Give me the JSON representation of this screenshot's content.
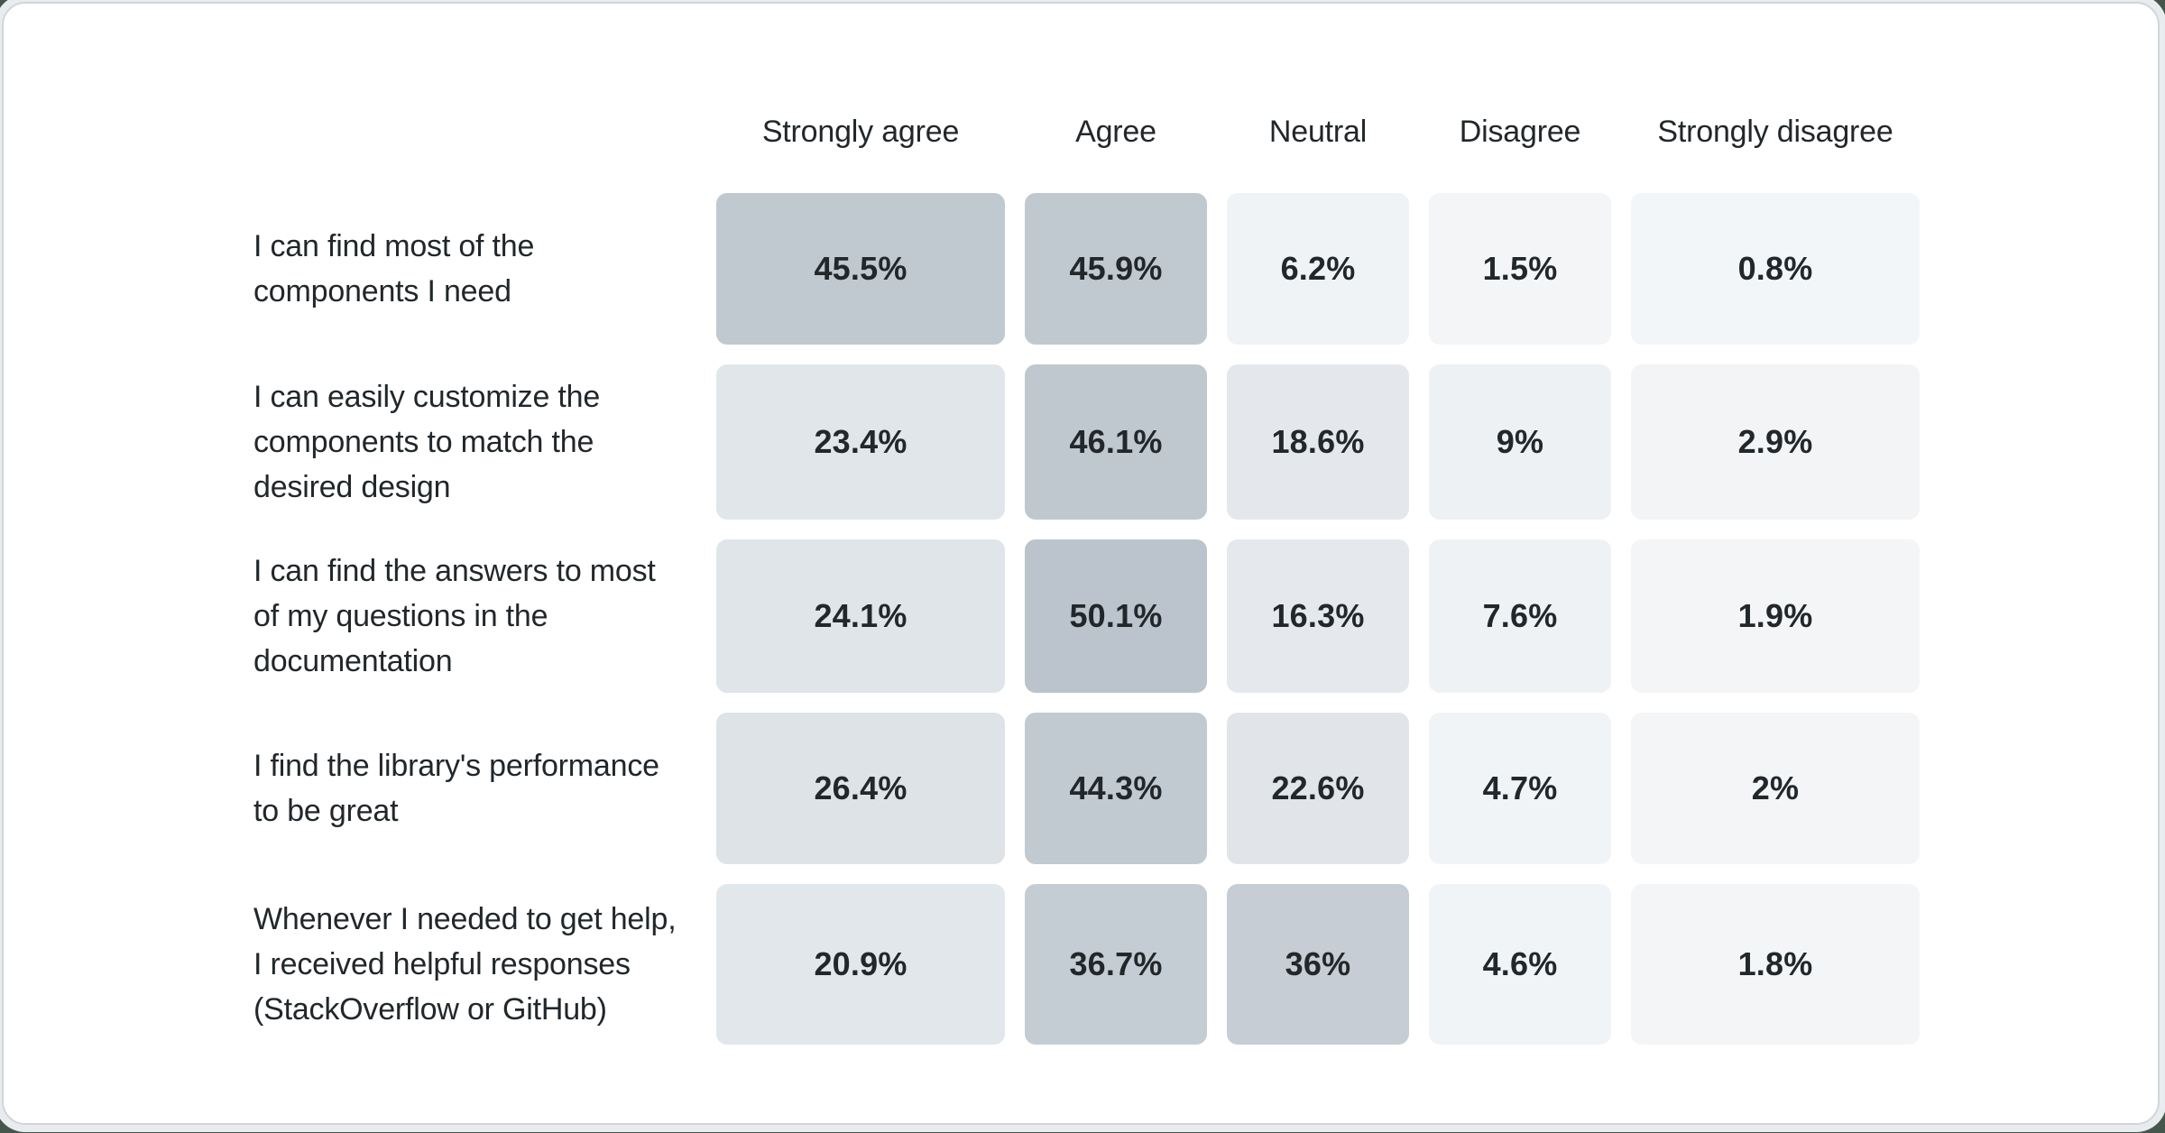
{
  "page": {
    "background_behind_card": "#45574d",
    "card_background": "#ffffff",
    "card_border_color": "#d0d6da",
    "card_halo_color": "#e9ecee",
    "text_color": "#21272a"
  },
  "table": {
    "columns": [
      "Strongly agree",
      "Agree",
      "Neutral",
      "Disagree",
      "Strongly disagree"
    ],
    "rows": [
      {
        "label": "I can find most of the components I need",
        "label_lines": [
          "I can find most of the",
          "components I need"
        ],
        "cells": [
          {
            "value": "45.5%",
            "bg": "#c0c8d0"
          },
          {
            "value": "45.9%",
            "bg": "#c0c8d0"
          },
          {
            "value": "6.2%",
            "bg": "#f0f3f5"
          },
          {
            "value": "1.5%",
            "bg": "#f3f5f7"
          },
          {
            "value": "0.8%",
            "bg": "#f3f6f8"
          }
        ]
      },
      {
        "label": "I can easily customize the components to match the desired design",
        "label_lines": [
          "I can easily customize the",
          "components to match the",
          "desired design"
        ],
        "cells": [
          {
            "value": "23.4%",
            "bg": "#e1e6ea"
          },
          {
            "value": "46.1%",
            "bg": "#bfc7cf"
          },
          {
            "value": "18.6%",
            "bg": "#e4e8ec"
          },
          {
            "value": "9%",
            "bg": "#edf1f4"
          },
          {
            "value": "2.9%",
            "bg": "#f2f4f6"
          }
        ]
      },
      {
        "label": "I can find the answers to most of my questions in the documentation",
        "label_lines": [
          "I can find the answers to most",
          "of my questions in the",
          "documentation"
        ],
        "cells": [
          {
            "value": "24.1%",
            "bg": "#e0e5e9"
          },
          {
            "value": "50.1%",
            "bg": "#bbc4cc"
          },
          {
            "value": "16.3%",
            "bg": "#e5e9ed"
          },
          {
            "value": "7.6%",
            "bg": "#eff2f4"
          },
          {
            "value": "1.9%",
            "bg": "#f3f5f7"
          }
        ]
      },
      {
        "label": "I find the library's performance to be great",
        "label_lines": [
          "I find the library's performance",
          "to be great"
        ],
        "cells": [
          {
            "value": "26.4%",
            "bg": "#dee3e8"
          },
          {
            "value": "44.3%",
            "bg": "#c1c9d1"
          },
          {
            "value": "22.6%",
            "bg": "#e1e5ea"
          },
          {
            "value": "4.7%",
            "bg": "#f1f4f6"
          },
          {
            "value": "2%",
            "bg": "#f3f5f7"
          }
        ]
      },
      {
        "label": "Whenever I needed to get help, I received helpful responses (StackOverflow or GitHub)",
        "label_lines": [
          "Whenever I needed to get help,",
          "I received helpful responses",
          "(StackOverflow or GitHub)"
        ],
        "cells": [
          {
            "value": "20.9%",
            "bg": "#e2e7eb"
          },
          {
            "value": "36.7%",
            "bg": "#c5cdd4"
          },
          {
            "value": "36%",
            "bg": "#c6cdd4"
          },
          {
            "value": "4.6%",
            "bg": "#f1f4f6"
          },
          {
            "value": "1.8%",
            "bg": "#f3f5f7"
          }
        ]
      }
    ]
  },
  "chart_data": {
    "type": "heatmap",
    "title": "",
    "columns": [
      "Strongly agree",
      "Agree",
      "Neutral",
      "Disagree",
      "Strongly disagree"
    ],
    "rows": [
      "I can find most of the components I need",
      "I can easily customize the components to match the desired design",
      "I can find the answers to most of my questions in the documentation",
      "I find the library's performance to be great",
      "Whenever I needed to get help, I received helpful responses (StackOverflow or GitHub)"
    ],
    "values_percent": [
      [
        45.5,
        45.9,
        6.2,
        1.5,
        0.8
      ],
      [
        23.4,
        46.1,
        18.6,
        9,
        2.9
      ],
      [
        24.1,
        50.1,
        16.3,
        7.6,
        1.9
      ],
      [
        26.4,
        44.3,
        22.6,
        4.7,
        2
      ],
      [
        20.9,
        36.7,
        36,
        4.6,
        1.8
      ]
    ],
    "color_scale": {
      "low_color": "#f5f7f9",
      "high_color": "#bbc4cc",
      "domain_percent": [
        0,
        50
      ]
    },
    "legend": "none",
    "grid": "off",
    "cell_label_format": "percent"
  }
}
